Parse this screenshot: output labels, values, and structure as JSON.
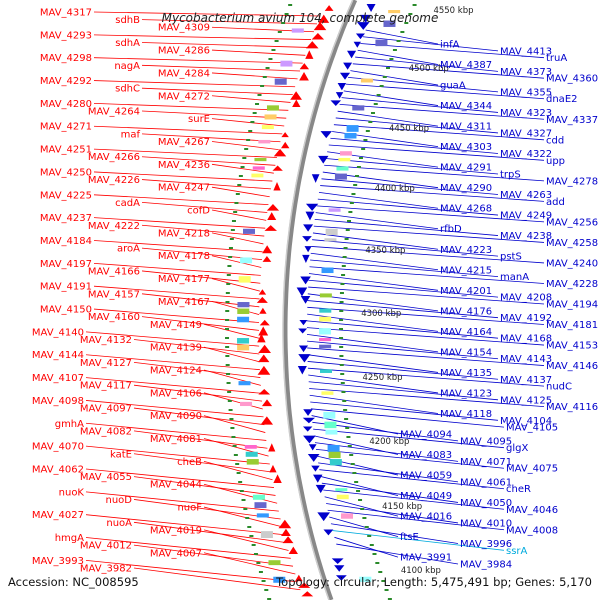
{
  "title": "Mycobacterium avium 104, complete genome",
  "accession": "Accession: NC_008595",
  "topology": "Topology: circular; Length: 5,475,491 bp; Genes: 5,170",
  "colors": {
    "forward": "#ff0000",
    "reverse": "#0000cc",
    "rna": "#00aadd",
    "backbone": "#888888",
    "ticks": "#2a8a2a"
  },
  "kbp_labels": [
    "4550 kbp",
    "4500 kbp",
    "4450 kbp",
    "4400 kbp",
    "4350 kbp",
    "4300 kbp",
    "4250 kbp",
    "4200 kbp",
    "4150 kbp",
    "4100 kbp"
  ],
  "left_labels": [
    "MAV_4317",
    "sdhB",
    "MAV_4309",
    "MAV_4293",
    "sdhA",
    "MAV_4286",
    "MAV_4298",
    "nagA",
    "MAV_4284",
    "MAV_4292",
    "sdhC",
    "MAV_4272",
    "MAV_4280",
    "MAV_4264",
    "surE",
    "MAV_4271",
    "maf",
    "MAV_4267",
    "MAV_4251",
    "MAV_4266",
    "MAV_4236",
    "MAV_4250",
    "MAV_4226",
    "MAV_4247",
    "MAV_4225",
    "cadA",
    "cofD",
    "MAV_4237",
    "MAV_4222",
    "MAV_4218",
    "MAV_4184",
    "aroA",
    "MAV_4178",
    "MAV_4197",
    "MAV_4166",
    "MAV_4177",
    "MAV_4191",
    "MAV_4157",
    "MAV_4167",
    "MAV_4150",
    "MAV_4160",
    "MAV_4149",
    "MAV_4140",
    "MAV_4132",
    "MAV_4139",
    "MAV_4144",
    "MAV_4127",
    "MAV_4124",
    "MAV_4107",
    "MAV_4117",
    "MAV_4106",
    "MAV_4098",
    "MAV_4097",
    "MAV_4090",
    "gmhA",
    "MAV_4082",
    "MAV_4081",
    "MAV_4070",
    "katE",
    "cheB",
    "MAV_4062",
    "MAV_4055",
    "MAV_4044",
    "nuoK",
    "nuoD",
    "nuoF",
    "MAV_4027",
    "nuoA",
    "MAV_4019",
    "hmgA",
    "MAV_4012",
    "MAV_4007",
    "MAV_3993",
    "MAV_3982"
  ],
  "right_labels": [
    "infA",
    "MAV_4413",
    "truA",
    "MAV_4387",
    "MAV_4373",
    "MAV_4360",
    "guaA",
    "MAV_4355",
    "dnaE2",
    "MAV_4344",
    "MAV_4323",
    "MAV_4337",
    "MAV_4311",
    "MAV_4327",
    "cdd",
    "MAV_4303",
    "MAV_4322",
    "upp",
    "MAV_4291",
    "trpS",
    "MAV_4278",
    "MAV_4290",
    "MAV_4263",
    "add",
    "MAV_4268",
    "MAV_4249",
    "MAV_4256",
    "rfbD",
    "MAV_4238",
    "MAV_4258",
    "MAV_4223",
    "pstS",
    "MAV_4240",
    "MAV_4215",
    "manA",
    "MAV_4228",
    "MAV_4201",
    "MAV_4208",
    "MAV_4194",
    "MAV_4176",
    "MAV_4192",
    "MAV_4181",
    "MAV_4164",
    "MAV_4168",
    "MAV_4153",
    "MAV_4154",
    "MAV_4143",
    "MAV_4146",
    "MAV_4135",
    "MAV_4137",
    "nudC",
    "MAV_4123",
    "MAV_4125",
    "MAV_4116",
    "MAV_4118",
    "MAV_4104",
    "MAV_4105",
    "MAV_4094",
    "MAV_4095",
    "glgX",
    "MAV_4083",
    "MAV_4071",
    "MAV_4075",
    "MAV_4059",
    "MAV_4061",
    "cheR",
    "MAV_4049",
    "MAV_4050",
    "MAV_4046",
    "MAV_4016",
    "MAV_4010",
    "MAV_4008",
    "ftsE",
    "MAV_3996",
    "ssrA",
    "MAV_3991",
    "MAV_3984"
  ]
}
